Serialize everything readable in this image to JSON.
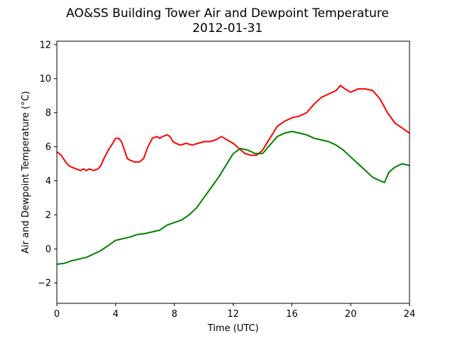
{
  "chart_data": {
    "type": "line",
    "title": "AO&SS Building Tower Air and Dewpoint Temperature",
    "subtitle": "2012-01-31",
    "xlabel": "Time (UTC)",
    "ylabel": "Air and Dewpoint Temperature (°C)",
    "xlim": [
      0,
      24
    ],
    "ylim": [
      -3.2,
      12.2
    ],
    "xticks": [
      0,
      4,
      8,
      12,
      16,
      20,
      24
    ],
    "yticks": [
      -2,
      0,
      2,
      4,
      6,
      8,
      10,
      12
    ],
    "grid": false,
    "legend": "none",
    "series": [
      {
        "color": "#ff0000",
        "x": [
          0,
          0.3,
          0.6,
          0.8,
          1.0,
          1.3,
          1.6,
          1.8,
          2.0,
          2.2,
          2.5,
          2.8,
          3.0,
          3.2,
          3.5,
          3.8,
          4.0,
          4.2,
          4.4,
          4.6,
          4.8,
          5.0,
          5.3,
          5.6,
          5.9,
          6.2,
          6.5,
          6.8,
          7.0,
          7.2,
          7.5,
          7.7,
          7.9,
          8.1,
          8.4,
          8.8,
          9.2,
          9.6,
          10.0,
          10.4,
          10.8,
          11.2,
          11.6,
          12.0,
          12.4,
          12.8,
          13.2,
          13.6,
          14.0,
          14.5,
          15.0,
          15.5,
          16.0,
          16.5,
          17.0,
          17.5,
          18.0,
          18.5,
          19.0,
          19.3,
          19.6,
          20.0,
          20.5,
          21.0,
          21.5,
          22.0,
          22.5,
          23.0,
          23.5,
          24.0
        ],
        "values": [
          5.7,
          5.5,
          5.1,
          4.9,
          4.8,
          4.7,
          4.6,
          4.7,
          4.6,
          4.7,
          4.6,
          4.7,
          4.9,
          5.3,
          5.8,
          6.2,
          6.5,
          6.5,
          6.3,
          5.8,
          5.3,
          5.2,
          5.1,
          5.1,
          5.3,
          6.0,
          6.5,
          6.6,
          6.5,
          6.6,
          6.7,
          6.6,
          6.3,
          6.2,
          6.1,
          6.2,
          6.1,
          6.2,
          6.3,
          6.3,
          6.4,
          6.6,
          6.4,
          6.2,
          5.9,
          5.6,
          5.5,
          5.5,
          5.8,
          6.5,
          7.2,
          7.5,
          7.7,
          7.8,
          8.0,
          8.5,
          8.9,
          9.1,
          9.3,
          9.6,
          9.4,
          9.2,
          9.4,
          9.4,
          9.3,
          8.8,
          8.0,
          7.4,
          7.1,
          6.8
        ]
      },
      {
        "color": "#008000",
        "x": [
          0,
          0.5,
          1.0,
          1.5,
          2.0,
          2.5,
          3.0,
          3.5,
          4.0,
          4.5,
          5.0,
          5.5,
          6.0,
          6.5,
          7.0,
          7.5,
          8.0,
          8.5,
          9.0,
          9.5,
          10.0,
          10.5,
          11.0,
          11.5,
          12.0,
          12.5,
          13.0,
          13.5,
          14.0,
          14.5,
          15.0,
          15.5,
          16.0,
          16.5,
          17.0,
          17.5,
          18.0,
          18.5,
          19.0,
          19.5,
          20.0,
          20.5,
          21.0,
          21.5,
          22.0,
          22.3,
          22.6,
          23.0,
          23.5,
          24.0
        ],
        "values": [
          -0.9,
          -0.85,
          -0.7,
          -0.6,
          -0.5,
          -0.3,
          -0.1,
          0.2,
          0.5,
          0.6,
          0.7,
          0.85,
          0.9,
          1.0,
          1.1,
          1.4,
          1.55,
          1.7,
          2.0,
          2.4,
          3.0,
          3.6,
          4.2,
          4.9,
          5.6,
          5.9,
          5.8,
          5.6,
          5.6,
          6.1,
          6.6,
          6.8,
          6.9,
          6.8,
          6.7,
          6.5,
          6.4,
          6.3,
          6.1,
          5.8,
          5.4,
          5.0,
          4.6,
          4.2,
          4.0,
          3.9,
          4.5,
          4.8,
          5.0,
          4.9
        ]
      }
    ]
  }
}
